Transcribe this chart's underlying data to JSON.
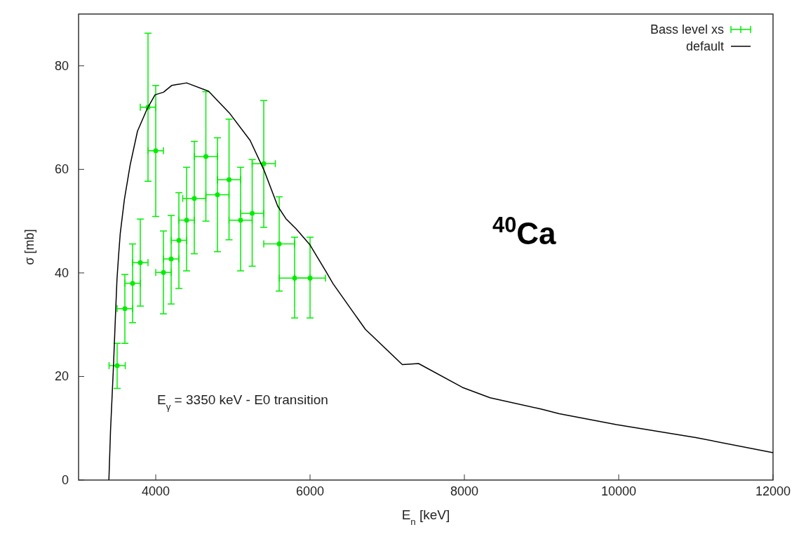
{
  "chart_data": {
    "type": "scatter",
    "xlabel": "E$_{n}$ [keV]",
    "ylabel": "σ [mb]",
    "annotations": [
      "E$_{γ}$ = 3350 keV - E0 transition",
      "$^{40}$Ca"
    ],
    "xlim": [
      3000,
      12000
    ],
    "ylim": [
      0,
      90
    ],
    "xticks": [
      4000,
      6000,
      8000,
      10000,
      12000
    ],
    "yticks": [
      0,
      20,
      40,
      60,
      80
    ],
    "grid": false,
    "legend": "top right",
    "line_style": "solid",
    "series": [
      {
        "name": "Bass level xs",
        "marker": "circle",
        "color": "#00ee00",
        "x": [
          3500,
          3600,
          3700,
          3800,
          3900,
          4000,
          4100,
          4200,
          4300,
          4400,
          4500,
          4650,
          4800,
          4950,
          5100,
          5250,
          5400,
          5600,
          5800,
          6000
        ],
        "values": [
          22.1,
          33.1,
          38.0,
          42.0,
          72.0,
          63.6,
          40.1,
          42.7,
          46.3,
          50.2,
          54.4,
          62.5,
          55.1,
          58.0,
          50.2,
          51.5,
          61.1,
          45.6,
          39.0,
          39.0
        ],
        "errors": [
          [
            17.7,
            26.4
          ],
          [
            26.4,
            39.7
          ],
          [
            30.4,
            45.6
          ],
          [
            33.6,
            50.4
          ],
          [
            57.7,
            86.3
          ],
          [
            50.9,
            76.2
          ],
          [
            32.1,
            48.1
          ],
          [
            34.0,
            51.1
          ],
          [
            37.0,
            55.5
          ],
          [
            40.4,
            60.4
          ],
          [
            43.7,
            65.4
          ],
          [
            50.0,
            75.0
          ],
          [
            44.1,
            66.1
          ],
          [
            46.4,
            69.7
          ],
          [
            40.4,
            60.4
          ],
          [
            41.3,
            61.9
          ],
          [
            48.8,
            73.3
          ],
          [
            36.5,
            54.7
          ],
          [
            31.3,
            46.9
          ],
          [
            31.3,
            46.9
          ]
        ],
        "xerrors": [
          105,
          100,
          100,
          100,
          100,
          100,
          100,
          100,
          100,
          100,
          150,
          150,
          150,
          150,
          150,
          150,
          150,
          200,
          200,
          200
        ]
      },
      {
        "name": "default",
        "type": "line",
        "color": "#000000",
        "x": [
          3393,
          3414,
          3450,
          3482,
          3498,
          3518,
          3540,
          3594,
          3668,
          3764,
          3892,
          3991,
          4101,
          4206,
          4400,
          4685,
          4954,
          5223,
          5402,
          5581,
          5686,
          5821,
          6000,
          6209,
          6299,
          6717,
          7196,
          7406,
          7974,
          8333,
          9000,
          9230,
          9970,
          11000,
          12000
        ],
        "values": [
          0,
          9.5,
          21.2,
          33.1,
          38.8,
          43.2,
          47.6,
          54.2,
          60.8,
          67.4,
          71.8,
          74.4,
          74.9,
          76.2,
          76.7,
          75.1,
          70.9,
          65.6,
          59.9,
          52.9,
          50.5,
          48.5,
          45.4,
          40.2,
          37.9,
          29.1,
          22.3,
          22.5,
          17.9,
          15.9,
          13.7,
          12.8,
          10.7,
          8.2,
          5.3
        ]
      }
    ]
  }
}
